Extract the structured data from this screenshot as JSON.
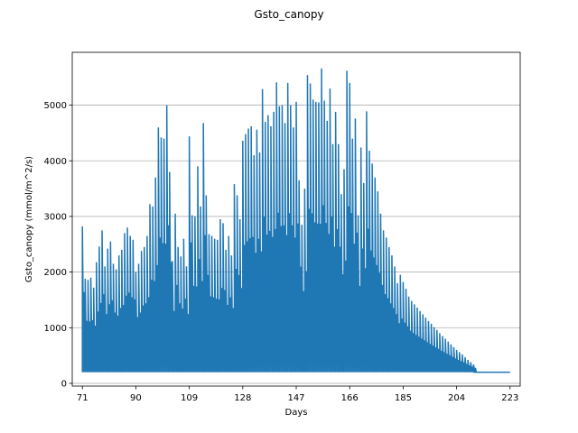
{
  "chart_data": {
    "type": "line",
    "title": "Gsto_canopy",
    "xlabel": "Days",
    "ylabel": "Gsto_canopy (mmol/m^2/s)",
    "xlim": [
      67.4,
      226.6
    ],
    "ylim": [
      -50,
      5950
    ],
    "x_ticks": [
      71,
      90,
      109,
      128,
      147,
      166,
      185,
      204,
      223
    ],
    "y_ticks": [
      0,
      1000,
      2000,
      3000,
      4000,
      5000
    ],
    "grid": {
      "y": true,
      "x": false
    },
    "legend": "none",
    "series": [
      {
        "color": "#1f77b4",
        "baseline": 200,
        "peaks": [
          [
            71,
            2820
          ],
          [
            72,
            1880
          ],
          [
            73,
            1860
          ],
          [
            74,
            1900
          ],
          [
            75,
            1720
          ],
          [
            76,
            2180
          ],
          [
            77,
            2460
          ],
          [
            78,
            2750
          ],
          [
            79,
            2100
          ],
          [
            80,
            2420
          ],
          [
            81,
            2550
          ],
          [
            82,
            2150
          ],
          [
            83,
            2050
          ],
          [
            84,
            2300
          ],
          [
            85,
            2400
          ],
          [
            86,
            2700
          ],
          [
            87,
            2800
          ],
          [
            88,
            2650
          ],
          [
            89,
            2580
          ],
          [
            90,
            2000
          ],
          [
            91,
            2150
          ],
          [
            92,
            2380
          ],
          [
            93,
            2450
          ],
          [
            94,
            2650
          ],
          [
            95,
            3220
          ],
          [
            96,
            3180
          ],
          [
            97,
            3700
          ],
          [
            98,
            4600
          ],
          [
            99,
            4420
          ],
          [
            100,
            4400
          ],
          [
            101,
            5000
          ],
          [
            102,
            3800
          ],
          [
            103,
            2200
          ],
          [
            104,
            3050
          ],
          [
            105,
            2450
          ],
          [
            106,
            2280
          ],
          [
            107,
            2600
          ],
          [
            108,
            2100
          ],
          [
            109,
            4440
          ],
          [
            110,
            3020
          ],
          [
            111,
            3000
          ],
          [
            112,
            3900
          ],
          [
            113,
            3180
          ],
          [
            114,
            4680
          ],
          [
            115,
            3380
          ],
          [
            116,
            2680
          ],
          [
            117,
            2650
          ],
          [
            118,
            2600
          ],
          [
            119,
            2580
          ],
          [
            120,
            2950
          ],
          [
            121,
            2880
          ],
          [
            122,
            2400
          ],
          [
            123,
            2650
          ],
          [
            124,
            2300
          ],
          [
            125,
            3580
          ],
          [
            126,
            3380
          ],
          [
            127,
            2950
          ],
          [
            128,
            4360
          ],
          [
            129,
            4480
          ],
          [
            130,
            4580
          ],
          [
            131,
            4620
          ],
          [
            132,
            4100
          ],
          [
            133,
            4560
          ],
          [
            134,
            4150
          ],
          [
            135,
            5290
          ],
          [
            136,
            4700
          ],
          [
            137,
            4820
          ],
          [
            138,
            4620
          ],
          [
            139,
            4880
          ],
          [
            140,
            5410
          ],
          [
            141,
            4980
          ],
          [
            142,
            5000
          ],
          [
            143,
            4680
          ],
          [
            144,
            5400
          ],
          [
            145,
            5000
          ],
          [
            146,
            4600
          ],
          [
            147,
            5060
          ],
          [
            148,
            3650
          ],
          [
            149,
            2850
          ],
          [
            150,
            3500
          ],
          [
            151,
            5540
          ],
          [
            152,
            5390
          ],
          [
            153,
            5100
          ],
          [
            154,
            5060
          ],
          [
            155,
            5050
          ],
          [
            156,
            5660
          ],
          [
            157,
            5080
          ],
          [
            158,
            4720
          ],
          [
            159,
            5300
          ],
          [
            160,
            4300
          ],
          [
            161,
            4880
          ],
          [
            162,
            4300
          ],
          [
            163,
            3400
          ],
          [
            164,
            3850
          ],
          [
            165,
            5620
          ],
          [
            166,
            5400
          ],
          [
            167,
            4400
          ],
          [
            168,
            4760
          ],
          [
            169,
            3020
          ],
          [
            170,
            4240
          ],
          [
            171,
            3600
          ],
          [
            172,
            4890
          ],
          [
            173,
            4180
          ],
          [
            174,
            3950
          ],
          [
            175,
            3700
          ],
          [
            176,
            3450
          ],
          [
            177,
            3050
          ],
          [
            178,
            2750
          ],
          [
            179,
            2620
          ],
          [
            180,
            2450
          ],
          [
            181,
            2300
          ],
          [
            182,
            2100
          ],
          [
            183,
            1800
          ],
          [
            184,
            1950
          ],
          [
            185,
            1820
          ],
          [
            186,
            1700
          ],
          [
            187,
            1560
          ],
          [
            188,
            1480
          ],
          [
            189,
            1420
          ],
          [
            190,
            1360
          ],
          [
            191,
            1300
          ],
          [
            192,
            1240
          ],
          [
            193,
            1180
          ],
          [
            194,
            1120
          ],
          [
            195,
            1070
          ],
          [
            196,
            1010
          ],
          [
            197,
            960
          ],
          [
            198,
            900
          ],
          [
            199,
            850
          ],
          [
            200,
            800
          ],
          [
            201,
            750
          ],
          [
            202,
            700
          ],
          [
            203,
            650
          ],
          [
            204,
            600
          ],
          [
            205,
            560
          ],
          [
            206,
            520
          ],
          [
            207,
            470
          ],
          [
            208,
            420
          ],
          [
            209,
            380
          ],
          [
            210,
            340
          ]
        ],
        "flat_segment": [
          [
            210,
            200
          ],
          [
            223,
            200
          ]
        ]
      }
    ]
  }
}
